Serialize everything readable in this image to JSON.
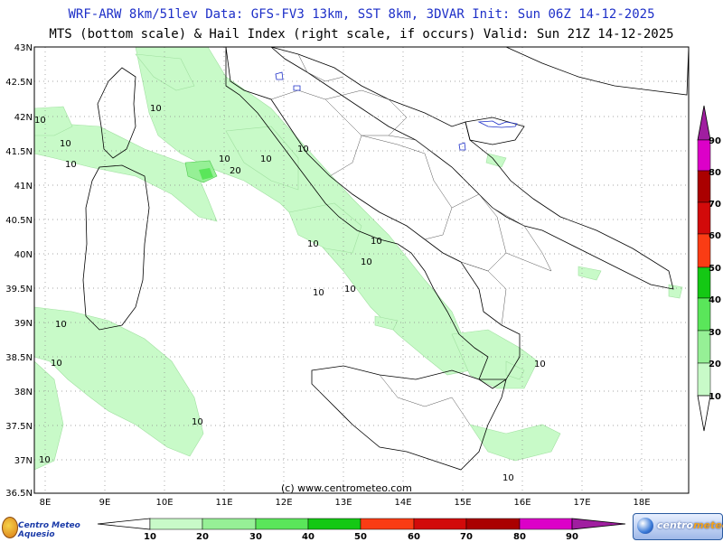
{
  "header": {
    "line1": "WRF-ARW 8km/51lev  Data: GFS-FV3 13km, SST 8km, 3DVAR   Init: Sun 06Z 14-12-2025",
    "line2": "MTS (bottom scale) & Hail Index (right scale, if occurs) Valid: Sun 21Z 14-12-2025"
  },
  "map": {
    "lat_labels": [
      "43N",
      "42.5N",
      "42N",
      "41.5N",
      "41N",
      "40.5N",
      "40N",
      "39.5N",
      "39N",
      "38.5N",
      "38N",
      "37.5N",
      "37N",
      "36.5N"
    ],
    "lon_labels": [
      "8E",
      "9E",
      "10E",
      "11E",
      "12E",
      "13E",
      "14E",
      "15E",
      "16E",
      "17E",
      "18E"
    ],
    "contour_labels": [
      "10",
      "10",
      "10",
      "10",
      "10",
      "20",
      "10",
      "10",
      "10",
      "10",
      "10",
      "10",
      "10",
      "10",
      "10",
      "10",
      "10",
      "10",
      "10"
    ],
    "credit": "(c) www.centrometeo.com"
  },
  "mts_scale": {
    "values": [
      "10",
      "20",
      "30",
      "40",
      "50",
      "60",
      "70",
      "80",
      "90"
    ],
    "colors": [
      "#c8fac8",
      "#96f096",
      "#5ae65a",
      "#14c814",
      "#fa3c14",
      "#d20a0a",
      "#aa0000",
      "#dc00c8",
      "#a01ea0"
    ]
  },
  "hail_scale": {
    "values": [
      "90",
      "80",
      "70",
      "60",
      "50",
      "40",
      "30",
      "20",
      "10"
    ],
    "colors": [
      "#a01ea0",
      "#dc00c8",
      "#aa0000",
      "#d20a0a",
      "#fa3c14",
      "#14c814",
      "#5ae65a",
      "#96f096",
      "#c8fac8"
    ]
  },
  "logos": {
    "left": "Centro Meteo Aquesio",
    "right_a": "centro",
    "right_b": "meteo"
  }
}
